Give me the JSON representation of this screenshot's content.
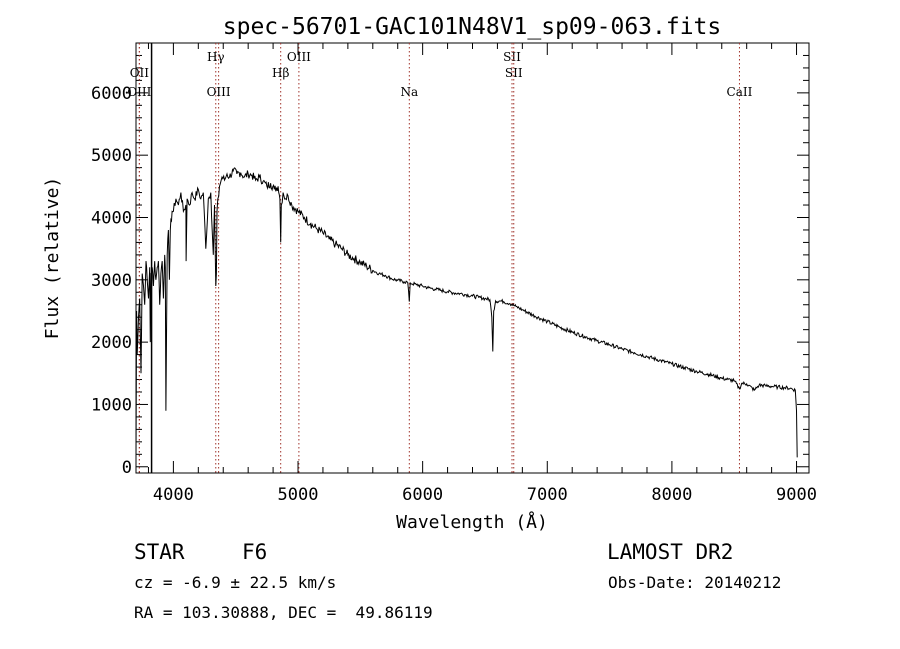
{
  "title": "spec-56701-GAC101N48V1_sp09-063.fits",
  "chart_data": {
    "type": "line",
    "title": "spec-56701-GAC101N48V1_sp09-063.fits",
    "xlabel": "Wavelength (Å)",
    "ylabel": "Flux (relative)",
    "xlim": [
      3700,
      9100
    ],
    "ylim": [
      -100,
      6800
    ],
    "x_ticks": [
      4000,
      5000,
      6000,
      7000,
      8000,
      9000
    ],
    "y_ticks": [
      0,
      1000,
      2000,
      3000,
      4000,
      5000,
      6000
    ],
    "series": [
      {
        "color": "#000000",
        "x": [
          3700,
          3705,
          3710,
          3720,
          3730,
          3740,
          3750,
          3760,
          3770,
          3780,
          3790,
          3800,
          3810,
          3815,
          3820,
          3830,
          3840,
          3850,
          3860,
          3870,
          3880,
          3890,
          3900,
          3910,
          3920,
          3930,
          3935,
          3940,
          3950,
          3960,
          3968,
          3975,
          3990,
          4000,
          4020,
          4040,
          4060,
          4080,
          4100,
          4102,
          4110,
          4130,
          4150,
          4170,
          4200,
          4220,
          4240,
          4260,
          4280,
          4300,
          4320,
          4330,
          4340,
          4345,
          4350,
          4370,
          4390,
          4410,
          4430,
          4450,
          4480,
          4510,
          4540,
          4570,
          4600,
          4630,
          4660,
          4690,
          4720,
          4750,
          4780,
          4810,
          4840,
          4855,
          4861,
          4866,
          4880,
          4900,
          4920,
          4950,
          5000,
          5050,
          5100,
          5150,
          5200,
          5250,
          5300,
          5350,
          5400,
          5450,
          5500,
          5550,
          5600,
          5650,
          5700,
          5750,
          5800,
          5850,
          5880,
          5893,
          5900,
          5950,
          6000,
          6050,
          6100,
          6150,
          6200,
          6250,
          6300,
          6350,
          6400,
          6450,
          6500,
          6540,
          6555,
          6563,
          6570,
          6585,
          6620,
          6650,
          6700,
          6750,
          6800,
          6900,
          7000,
          7100,
          7200,
          7300,
          7400,
          7500,
          7600,
          7700,
          7800,
          7900,
          8000,
          8100,
          8200,
          8300,
          8400,
          8450,
          8500,
          8542,
          8560,
          8600,
          8662,
          8700,
          8750,
          8800,
          8850,
          8900,
          8950,
          8990,
          9000,
          9005
        ],
        "y": [
          150,
          2500,
          1800,
          2400,
          2700,
          1500,
          3100,
          2900,
          2600,
          3300,
          3000,
          2700,
          3200,
          2000,
          3100,
          3200,
          2900,
          3300,
          3000,
          3200,
          3300,
          2600,
          3100,
          3300,
          2700,
          3400,
          3200,
          900,
          3400,
          3800,
          3000,
          3800,
          4100,
          4100,
          4300,
          4200,
          4400,
          4100,
          4200,
          3300,
          4300,
          4200,
          4400,
          4300,
          4450,
          4300,
          4400,
          3500,
          4300,
          4400,
          3400,
          4200,
          2900,
          3100,
          4100,
          4500,
          4650,
          4600,
          4700,
          4650,
          4750,
          4700,
          4720,
          4650,
          4700,
          4680,
          4600,
          4650,
          4580,
          4500,
          4550,
          4450,
          4500,
          4300,
          3600,
          4200,
          4400,
          4300,
          4350,
          4200,
          4100,
          4000,
          3900,
          3820,
          3750,
          3650,
          3570,
          3500,
          3400,
          3340,
          3280,
          3220,
          3150,
          3100,
          3070,
          3020,
          2990,
          2970,
          2960,
          2650,
          2950,
          2920,
          2900,
          2870,
          2850,
          2830,
          2810,
          2790,
          2780,
          2760,
          2740,
          2720,
          2700,
          2680,
          2400,
          1850,
          2500,
          2660,
          2660,
          2650,
          2620,
          2570,
          2520,
          2420,
          2330,
          2240,
          2160,
          2090,
          2020,
          1960,
          1890,
          1830,
          1770,
          1710,
          1650,
          1590,
          1530,
          1480,
          1420,
          1400,
          1380,
          1250,
          1340,
          1330,
          1230,
          1310,
          1300,
          1290,
          1280,
          1270,
          1260,
          1230,
          900,
          150
        ]
      }
    ],
    "lines": [
      {
        "label": "OII",
        "x": 3727,
        "row": 1
      },
      {
        "label": "OIII",
        "x": 3727,
        "row": 2
      },
      {
        "label": "Hγ",
        "x": 4340,
        "row": 0
      },
      {
        "label": "OIII",
        "x": 4363,
        "row": 2
      },
      {
        "label": "Hβ",
        "x": 4861,
        "row": 1
      },
      {
        "label": "OIII",
        "x": 5007,
        "row": 0
      },
      {
        "label": "Na",
        "x": 5893,
        "row": 2
      },
      {
        "label": "SII",
        "x": 6717,
        "row": 0
      },
      {
        "label": "SII",
        "x": 6731,
        "row": 1
      },
      {
        "label": "CaII",
        "x": 8542,
        "row": 2
      }
    ],
    "line_color": "#a0322a"
  },
  "info": {
    "object_class": "STAR",
    "subclass": "F6",
    "survey": "LAMOST DR2",
    "cz": "cz = -6.9 ± 22.5 km/s",
    "obs_date": "Obs-Date: 20140212",
    "coords": "RA = 103.30888, DEC =  49.86119"
  }
}
